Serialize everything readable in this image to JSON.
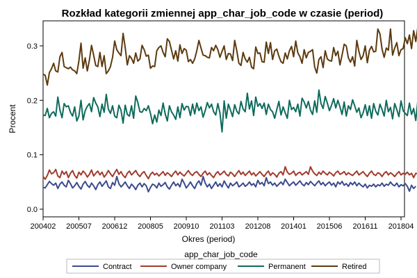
{
  "chart_data": {
    "type": "line",
    "title": "Rozkład kategorii zmiennej app_char_job_code w czasie (period)",
    "xlabel": "Okres (period)",
    "ylabel": "Procent",
    "x_start": "2004-02",
    "x_end": "2018-06",
    "x_ticks": [
      "200402",
      "200507",
      "200612",
      "200805",
      "200910",
      "201103",
      "201208",
      "201401",
      "201506",
      "201611",
      "201804"
    ],
    "y_ticks": [
      "0.0",
      "0.1",
      "0.2",
      "0.3"
    ],
    "ylim": [
      0.0,
      0.34
    ],
    "grid": false,
    "legend": {
      "title": "app_char_job_code",
      "position": "bottom"
    },
    "series": [
      {
        "name": "Contract",
        "color": "#3b4a8c",
        "values": [
          0.04,
          0.039,
          0.045,
          0.051,
          0.047,
          0.044,
          0.048,
          0.038,
          0.046,
          0.05,
          0.044,
          0.041,
          0.053,
          0.047,
          0.039,
          0.043,
          0.049,
          0.042,
          0.037,
          0.046,
          0.051,
          0.044,
          0.04,
          0.048,
          0.043,
          0.036,
          0.045,
          0.05,
          0.042,
          0.047,
          0.052,
          0.041,
          0.038,
          0.049,
          0.044,
          0.06,
          0.047,
          0.041,
          0.045,
          0.05,
          0.043,
          0.038,
          0.046,
          0.042,
          0.036,
          0.044,
          0.048,
          0.041,
          0.047,
          0.043,
          0.032,
          0.04,
          0.046,
          0.044,
          0.039,
          0.048,
          0.042,
          0.045,
          0.049,
          0.041,
          0.037,
          0.044,
          0.05,
          0.043,
          0.047,
          0.041,
          0.055,
          0.048,
          0.039,
          0.044,
          0.05,
          0.043,
          0.038,
          0.047,
          0.052,
          0.044,
          0.06,
          0.048,
          0.041,
          0.046,
          0.038,
          0.044,
          0.05,
          0.042,
          0.047,
          0.041,
          0.052,
          0.045,
          0.039,
          0.048,
          0.043,
          0.046,
          0.05,
          0.041,
          0.044,
          0.048,
          0.042,
          0.045,
          0.05,
          0.044,
          0.047,
          0.041,
          0.053,
          0.046,
          0.049,
          0.043,
          0.058,
          0.047,
          0.05,
          0.044,
          0.048,
          0.042,
          0.046,
          0.05,
          0.045,
          0.055,
          0.049,
          0.043,
          0.047,
          0.05,
          0.044,
          0.048,
          0.052,
          0.046,
          0.043,
          0.049,
          0.045,
          0.051,
          0.047,
          0.043,
          0.048,
          0.052,
          0.045,
          0.049,
          0.043,
          0.047,
          0.05,
          0.044,
          0.048,
          0.041,
          0.05,
          0.046,
          0.051,
          0.044,
          0.047,
          0.042,
          0.049,
          0.045,
          0.05,
          0.043,
          0.048,
          0.044,
          0.041,
          0.046,
          0.039,
          0.044,
          0.042,
          0.046,
          0.041,
          0.045,
          0.043,
          0.048,
          0.042,
          0.046,
          0.044,
          0.05,
          0.045,
          0.043,
          0.048,
          0.041,
          0.045,
          0.043,
          0.047,
          0.042,
          0.033,
          0.044,
          0.038,
          0.042
        ]
      },
      {
        "name": "Owner company",
        "color": "#a23a2e",
        "values": [
          0.06,
          0.055,
          0.062,
          0.072,
          0.065,
          0.067,
          0.073,
          0.061,
          0.058,
          0.07,
          0.064,
          0.069,
          0.058,
          0.066,
          0.071,
          0.062,
          0.057,
          0.068,
          0.063,
          0.07,
          0.066,
          0.059,
          0.064,
          0.072,
          0.061,
          0.066,
          0.07,
          0.063,
          0.068,
          0.059,
          0.064,
          0.071,
          0.065,
          0.06,
          0.067,
          0.073,
          0.064,
          0.069,
          0.062,
          0.058,
          0.066,
          0.07,
          0.063,
          0.067,
          0.071,
          0.064,
          0.06,
          0.066,
          0.069,
          0.062,
          0.056,
          0.064,
          0.068,
          0.063,
          0.066,
          0.061,
          0.065,
          0.069,
          0.062,
          0.067,
          0.064,
          0.06,
          0.066,
          0.07,
          0.063,
          0.068,
          0.064,
          0.061,
          0.066,
          0.071,
          0.065,
          0.062,
          0.067,
          0.069,
          0.064,
          0.06,
          0.066,
          0.07,
          0.063,
          0.067,
          0.062,
          0.058,
          0.065,
          0.069,
          0.063,
          0.066,
          0.07,
          0.064,
          0.061,
          0.068,
          0.065,
          0.06,
          0.066,
          0.071,
          0.064,
          0.068,
          0.062,
          0.066,
          0.07,
          0.063,
          0.067,
          0.061,
          0.065,
          0.069,
          0.064,
          0.06,
          0.066,
          0.07,
          0.062,
          0.067,
          0.064,
          0.059,
          0.066,
          0.069,
          0.063,
          0.078,
          0.068,
          0.064,
          0.066,
          0.07,
          0.062,
          0.066,
          0.068,
          0.063,
          0.066,
          0.069,
          0.064,
          0.078,
          0.07,
          0.065,
          0.062,
          0.068,
          0.064,
          0.07,
          0.066,
          0.063,
          0.068,
          0.065,
          0.061,
          0.067,
          0.07,
          0.064,
          0.066,
          0.069,
          0.063,
          0.067,
          0.064,
          0.062,
          0.066,
          0.07,
          0.063,
          0.066,
          0.069,
          0.064,
          0.06,
          0.066,
          0.07,
          0.064,
          0.062,
          0.067,
          0.065,
          0.06,
          0.066,
          0.069,
          0.063,
          0.067,
          0.064,
          0.06,
          0.065,
          0.069,
          0.063,
          0.066,
          0.064,
          0.068,
          0.063,
          0.066,
          0.058,
          0.066,
          0.065,
          0.063
        ]
      },
      {
        "name": "Permanent",
        "color": "#0e6b5c",
        "values": [
          0.173,
          0.172,
          0.185,
          0.168,
          0.176,
          0.179,
          0.171,
          0.206,
          0.182,
          0.168,
          0.194,
          0.188,
          0.19,
          0.178,
          0.171,
          0.188,
          0.162,
          0.171,
          0.2,
          0.164,
          0.181,
          0.189,
          0.194,
          0.179,
          0.205,
          0.195,
          0.188,
          0.17,
          0.193,
          0.178,
          0.211,
          0.184,
          0.176,
          0.19,
          0.171,
          0.168,
          0.191,
          0.182,
          0.158,
          0.191,
          0.174,
          0.171,
          0.19,
          0.167,
          0.208,
          0.196,
          0.179,
          0.178,
          0.185,
          0.181,
          0.19,
          0.176,
          0.157,
          0.173,
          0.16,
          0.182,
          0.172,
          0.195,
          0.175,
          0.162,
          0.19,
          0.179,
          0.173,
          0.165,
          0.188,
          0.168,
          0.194,
          0.182,
          0.189,
          0.188,
          0.172,
          0.193,
          0.175,
          0.195,
          0.181,
          0.188,
          0.169,
          0.181,
          0.196,
          0.186,
          0.193,
          0.179,
          0.173,
          0.194,
          0.177,
          0.142,
          0.199,
          0.167,
          0.193,
          0.182,
          0.17,
          0.192,
          0.18,
          0.175,
          0.198,
          0.184,
          0.179,
          0.213,
          0.184,
          0.199,
          0.172,
          0.206,
          0.189,
          0.194,
          0.185,
          0.195,
          0.174,
          0.193,
          0.183,
          0.179,
          0.167,
          0.183,
          0.198,
          0.173,
          0.188,
          0.177,
          0.167,
          0.2,
          0.183,
          0.187,
          0.179,
          0.193,
          0.171,
          0.204,
          0.197,
          0.186,
          0.198,
          0.182,
          0.174,
          0.199,
          0.178,
          0.219,
          0.194,
          0.185,
          0.207,
          0.195,
          0.181,
          0.191,
          0.203,
          0.186,
          0.2,
          0.188,
          0.174,
          0.197,
          0.171,
          0.19,
          0.183,
          0.201,
          0.19,
          0.178,
          0.186,
          0.168,
          0.177,
          0.192,
          0.172,
          0.19,
          0.167,
          0.194,
          0.18,
          0.173,
          0.193,
          0.183,
          0.171,
          0.2,
          0.179,
          0.187,
          0.166,
          0.194,
          0.183,
          0.17,
          0.199,
          0.181,
          0.176,
          0.172,
          0.195,
          0.174,
          0.185,
          0.163,
          0.2,
          0.172,
          0.189,
          0.176
        ]
      },
      {
        "name": "Retired",
        "color": "#5c3a0e",
        "values": [
          0.248,
          0.246,
          0.228,
          0.251,
          0.258,
          0.268,
          0.254,
          0.252,
          0.28,
          0.288,
          0.262,
          0.26,
          0.258,
          0.261,
          0.256,
          0.254,
          0.249,
          0.272,
          0.305,
          0.259,
          0.278,
          0.254,
          0.274,
          0.301,
          0.283,
          0.264,
          0.262,
          0.288,
          0.262,
          0.282,
          0.249,
          0.254,
          0.262,
          0.279,
          0.309,
          0.293,
          0.287,
          0.282,
          0.323,
          0.297,
          0.265,
          0.282,
          0.277,
          0.268,
          0.287,
          0.272,
          0.276,
          0.301,
          0.293,
          0.281,
          0.283,
          0.259,
          0.263,
          0.262,
          0.291,
          0.297,
          0.3,
          0.288,
          0.28,
          0.313,
          0.308,
          0.292,
          0.276,
          0.291,
          0.272,
          0.302,
          0.286,
          0.295,
          0.292,
          0.271,
          0.275,
          0.268,
          0.276,
          0.291,
          0.31,
          0.296,
          0.283,
          0.282,
          0.279,
          0.278,
          0.297,
          0.291,
          0.301,
          0.293,
          0.279,
          0.29,
          0.3,
          0.275,
          0.286,
          0.285,
          0.273,
          0.31,
          0.291,
          0.268,
          0.264,
          0.288,
          0.276,
          0.27,
          0.279,
          0.261,
          0.258,
          0.298,
          0.286,
          0.287,
          0.271,
          0.27,
          0.307,
          0.286,
          0.306,
          0.275,
          0.291,
          0.294,
          0.281,
          0.271,
          0.268,
          0.287,
          0.276,
          0.291,
          0.299,
          0.28,
          0.309,
          0.287,
          0.28,
          0.268,
          0.293,
          0.278,
          0.288,
          0.29,
          0.293,
          0.261,
          0.25,
          0.275,
          0.28,
          0.26,
          0.291,
          0.276,
          0.273,
          0.272,
          0.297,
          0.282,
          0.29,
          0.265,
          0.283,
          0.303,
          0.3,
          0.278,
          0.27,
          0.28,
          0.263,
          0.31,
          0.29,
          0.275,
          0.282,
          0.3,
          0.269,
          0.292,
          0.299,
          0.289,
          0.29,
          0.331,
          0.322,
          0.294,
          0.279,
          0.296,
          0.292,
          0.331,
          0.283,
          0.296,
          0.306,
          0.282,
          0.293,
          0.295,
          0.315,
          0.304,
          0.32,
          0.295,
          0.328,
          0.308,
          0.335,
          0.319,
          0.333,
          0.305,
          0.336,
          0.317,
          0.312
        ]
      }
    ]
  }
}
